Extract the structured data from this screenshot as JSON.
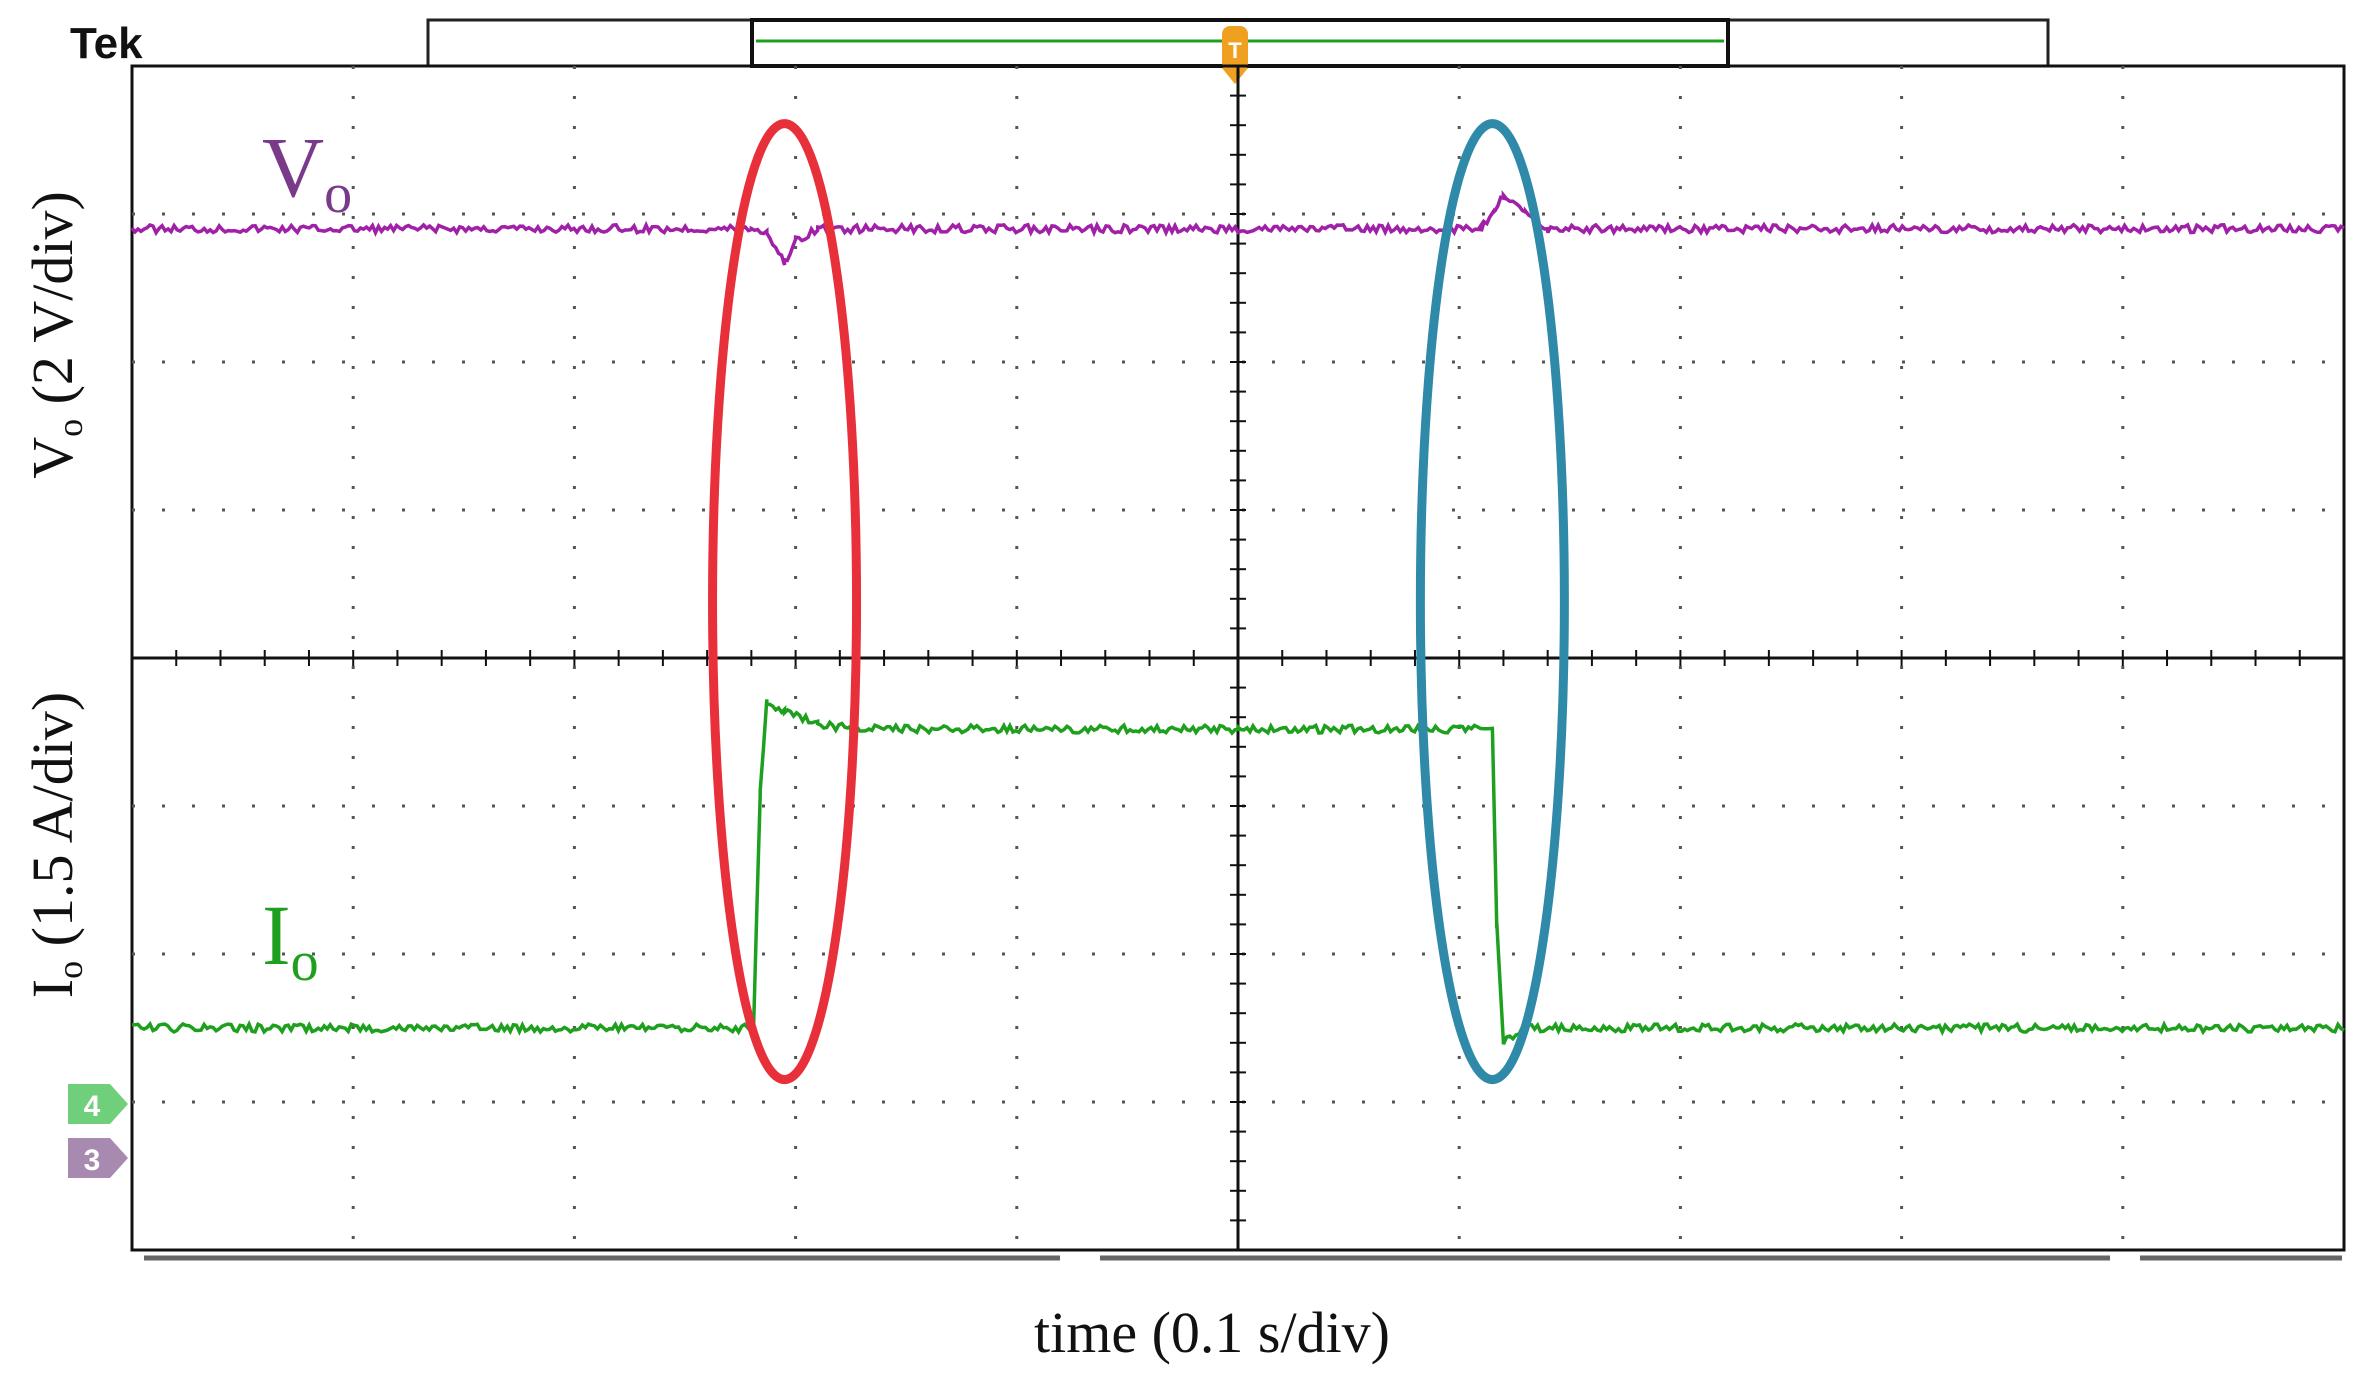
{
  "brand": "Tek",
  "colors": {
    "voltage_trace": "#a020a8",
    "current_trace": "#1ea01e",
    "red_highlight": "#e8303a",
    "blue_highlight": "#2e8aa8",
    "trigger_marker": "#f0a020",
    "ch4_marker": "#6fcf7a",
    "ch3_marker": "#a88ab0",
    "grid": "#000000"
  },
  "channel_markers": [
    {
      "label": "4"
    },
    {
      "label": "3"
    }
  ],
  "trigger_marker": {
    "label": "T"
  },
  "chart_data": {
    "type": "line",
    "instrument": "oscilloscope",
    "grid": true,
    "divisions": {
      "x": 10,
      "y": 8
    },
    "xlabel": "time (0.1 s/div)",
    "y_axes": [
      {
        "main": "V",
        "sub": "o",
        "rest": " (2 V/div)",
        "channel": "voltage"
      },
      {
        "main": "I",
        "sub": "o",
        "rest": " (1.5 A/div)",
        "channel": "current"
      }
    ],
    "xlim": [
      -0.5,
      0.5
    ],
    "series": [
      {
        "name_main": "V",
        "name_sub": "o",
        "unit": "div",
        "description_level_div": 2.9,
        "x": [
          -0.5,
          -0.22,
          -0.213,
          -0.205,
          -0.2,
          -0.19,
          0.11,
          0.115,
          0.12,
          0.13,
          0.14,
          0.5
        ],
        "y": [
          2.9,
          2.9,
          2.88,
          2.67,
          2.82,
          2.9,
          2.9,
          2.99,
          3.12,
          3.0,
          2.9,
          2.9
        ]
      },
      {
        "name_main": "I",
        "name_sub": "o",
        "unit": "div",
        "x": [
          -0.5,
          -0.219,
          -0.216,
          -0.213,
          -0.205,
          -0.19,
          -0.175,
          0.0,
          0.115,
          0.117,
          0.12,
          0.13,
          0.5
        ],
        "y": [
          -2.5,
          -2.5,
          -0.9,
          -0.3,
          -0.36,
          -0.44,
          -0.48,
          -0.48,
          -0.48,
          -1.8,
          -2.6,
          -2.5,
          -2.5
        ]
      }
    ],
    "annotations": [
      {
        "shape": "ellipse",
        "color": "red",
        "around_x": -0.205
      },
      {
        "shape": "ellipse",
        "color": "blue",
        "around_x": 0.115
      }
    ]
  }
}
